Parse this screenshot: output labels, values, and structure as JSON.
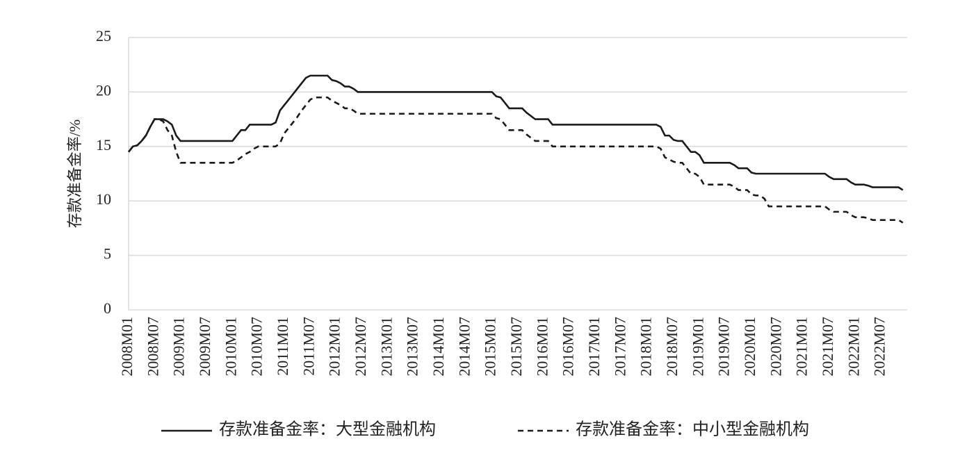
{
  "chart_data": {
    "type": "line",
    "y_label": "存款准备金率/%",
    "categories": [
      "2008M01",
      null,
      null,
      null,
      null,
      null,
      "2008M07",
      null,
      null,
      null,
      null,
      null,
      "2009M01",
      null,
      null,
      null,
      null,
      null,
      "2009M07",
      null,
      null,
      null,
      null,
      null,
      "2010M01",
      null,
      null,
      null,
      null,
      null,
      "2010M07",
      null,
      null,
      null,
      null,
      null,
      "2011M01",
      null,
      null,
      null,
      null,
      null,
      "2011M07",
      null,
      null,
      null,
      null,
      null,
      "2012M01",
      null,
      null,
      null,
      null,
      null,
      "2012M07",
      null,
      null,
      null,
      null,
      null,
      "2013M01",
      null,
      null,
      null,
      null,
      null,
      "2013M07",
      null,
      null,
      null,
      null,
      null,
      "2014M01",
      null,
      null,
      null,
      null,
      null,
      "2014M07",
      null,
      null,
      null,
      null,
      null,
      "2015M01",
      null,
      null,
      null,
      null,
      null,
      "2015M07",
      null,
      null,
      null,
      null,
      null,
      "2016M01",
      null,
      null,
      null,
      null,
      null,
      "2016M07",
      null,
      null,
      null,
      null,
      null,
      "2017M01",
      null,
      null,
      null,
      null,
      null,
      "2017M07",
      null,
      null,
      null,
      null,
      null,
      "2018M01",
      null,
      null,
      null,
      null,
      null,
      "2018M07",
      null,
      null,
      null,
      null,
      null,
      "2019M01",
      null,
      null,
      null,
      null,
      null,
      "2019M07",
      null,
      null,
      null,
      null,
      null,
      "2020M01",
      null,
      null,
      null,
      null,
      null,
      "2020M07",
      null,
      null,
      null,
      null,
      null,
      "2021M01",
      null,
      null,
      null,
      null,
      null,
      "2021M07",
      null,
      null,
      null,
      null,
      null,
      "2022M01",
      null,
      null,
      null,
      null,
      null,
      "2022M07",
      null,
      null,
      null,
      null,
      null
    ],
    "series": [
      {
        "name": "存款准备金率：大型金融机构",
        "color": "#1a1a1a",
        "dash": "none",
        "values": [
          14.5,
          15,
          15.1,
          15.5,
          16,
          16.8,
          17.5,
          17.5,
          17.5,
          17.3,
          17,
          16,
          15.5,
          15.5,
          15.5,
          15.5,
          15.5,
          15.5,
          15.5,
          15.5,
          15.5,
          15.5,
          15.5,
          15.5,
          15.5,
          16,
          16.5,
          16.5,
          17,
          17,
          17,
          17,
          17,
          17,
          17.2,
          18.3,
          18.8,
          19.3,
          19.8,
          20.3,
          20.8,
          21.3,
          21.5,
          21.5,
          21.5,
          21.5,
          21.5,
          21.1,
          21,
          20.8,
          20.5,
          20.5,
          20.3,
          20,
          20,
          20,
          20,
          20,
          20,
          20,
          20,
          20,
          20,
          20,
          20,
          20,
          20,
          20,
          20,
          20,
          20,
          20,
          20,
          20,
          20,
          20,
          20,
          20,
          20,
          20,
          20,
          20,
          20,
          20,
          20,
          19.6,
          19.5,
          19,
          18.5,
          18.5,
          18.5,
          18.5,
          18.1,
          17.8,
          17.5,
          17.5,
          17.5,
          17.5,
          17,
          17,
          17,
          17,
          17,
          17,
          17,
          17,
          17,
          17,
          17,
          17,
          17,
          17,
          17,
          17,
          17,
          17,
          17,
          17,
          17,
          17,
          17,
          17,
          17,
          16.8,
          16,
          16,
          15.6,
          15.5,
          15.5,
          15,
          14.5,
          14.5,
          14.2,
          13.5,
          13.5,
          13.5,
          13.5,
          13.5,
          13.5,
          13.5,
          13.3,
          13,
          13,
          13,
          12.6,
          12.5,
          12.5,
          12.5,
          12.5,
          12.5,
          12.5,
          12.5,
          12.5,
          12.5,
          12.5,
          12.5,
          12.5,
          12.5,
          12.5,
          12.5,
          12.5,
          12.5,
          12.2,
          12,
          12,
          12,
          12,
          11.7,
          11.5,
          11.5,
          11.5,
          11.4,
          11.25,
          11.25,
          11.25,
          11.25,
          11.25,
          11.25,
          11.25,
          11
        ]
      },
      {
        "name": "存款准备金率：中小型金融机构",
        "color": "#1a1a1a",
        "dash": "8,6",
        "values": [
          14.5,
          15,
          15.1,
          15.5,
          16,
          16.8,
          17.5,
          17.5,
          17.3,
          16.5,
          16,
          14.5,
          13.5,
          13.5,
          13.5,
          13.5,
          13.5,
          13.5,
          13.5,
          13.5,
          13.5,
          13.5,
          13.5,
          13.5,
          13.5,
          13.7,
          14,
          14.3,
          14.5,
          14.8,
          15,
          15,
          15,
          15,
          15,
          15.3,
          16.2,
          16.7,
          17.2,
          17.7,
          18.3,
          18.8,
          19.3,
          19.5,
          19.5,
          19.5,
          19.5,
          19.2,
          19,
          18.8,
          18.5,
          18.5,
          18.3,
          18,
          18,
          18,
          18,
          18,
          18,
          18,
          18,
          18,
          18,
          18,
          18,
          18,
          18,
          18,
          18,
          18,
          18,
          18,
          18,
          18,
          18,
          18,
          18,
          18,
          18,
          18,
          18,
          18,
          18,
          18,
          18,
          17.6,
          17.5,
          17,
          16.5,
          16.5,
          16.5,
          16.5,
          16.1,
          15.8,
          15.5,
          15.5,
          15.5,
          15.5,
          15,
          15,
          15,
          15,
          15,
          15,
          15,
          15,
          15,
          15,
          15,
          15,
          15,
          15,
          15,
          15,
          15,
          15,
          15,
          15,
          15,
          15,
          15,
          15,
          15,
          14.8,
          14,
          13.8,
          13.6,
          13.5,
          13.5,
          13,
          12.5,
          12.5,
          12.2,
          11.5,
          11.5,
          11.5,
          11.5,
          11.5,
          11.5,
          11.5,
          11.3,
          11,
          11,
          11,
          10.6,
          10.5,
          10.5,
          10.2,
          9.5,
          9.5,
          9.5,
          9.5,
          9.5,
          9.5,
          9.5,
          9.5,
          9.5,
          9.5,
          9.5,
          9.5,
          9.5,
          9.5,
          9.2,
          9,
          9,
          9,
          9,
          8.7,
          8.5,
          8.5,
          8.5,
          8.4,
          8.25,
          8.25,
          8.25,
          8.25,
          8.25,
          8.25,
          8.25,
          8
        ]
      }
    ],
    "ylim": [
      0,
      25
    ],
    "yticks": [
      0,
      5,
      10,
      15,
      20,
      25
    ],
    "grid": true,
    "legend": "bottom"
  }
}
